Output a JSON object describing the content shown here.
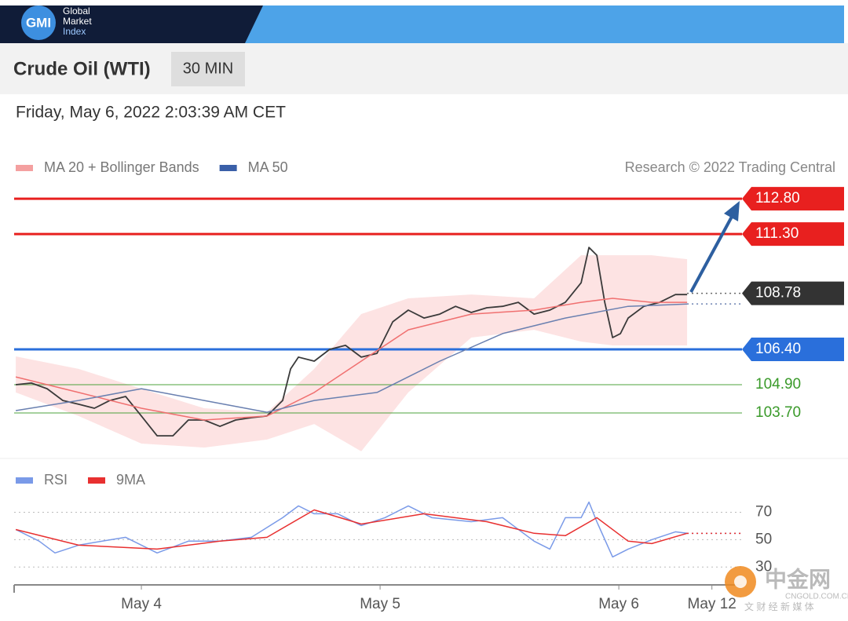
{
  "header": {
    "logo": "GMI",
    "brand": [
      "Global",
      "Market",
      "Index"
    ]
  },
  "title": "Crude Oil (WTI)",
  "timeframe": "30 MIN",
  "timestamp": "Friday, May 6, 2022 2:03:39 AM CET",
  "source": "Research © 2022 Trading Central",
  "watermark": {
    "name": "中金网",
    "site": "CNGOLD.COM.CN",
    "tagline": "文 财 经 新 媒 体"
  },
  "chart_data": [
    {
      "type": "line",
      "xlim": [
        3.467,
        6.516
      ],
      "ylim": [
        101.9,
        113.57
      ],
      "price": {
        "color": "#3a3a3a",
        "x": [
          3.474,
          3.539,
          3.605,
          3.671,
          3.737,
          3.803,
          3.868,
          3.934,
          4,
          4.066,
          4.132,
          4.197,
          4.263,
          4.329,
          4.395,
          4.461,
          4.526,
          4.592,
          4.625,
          4.658,
          4.724,
          4.789,
          4.855,
          4.921,
          4.987,
          5.053,
          5.118,
          5.184,
          5.25,
          5.316,
          5.382,
          5.447,
          5.513,
          5.579,
          5.645,
          5.711,
          5.776,
          5.842,
          5.875,
          5.908,
          5.941,
          5.974,
          6.007,
          6.039,
          6.105,
          6.171,
          6.237,
          6.286
        ],
        "values": [
          104.9,
          104.97,
          104.73,
          104.23,
          104.07,
          103.9,
          104.23,
          104.4,
          103.57,
          102.73,
          102.73,
          103.4,
          103.4,
          103.13,
          103.4,
          103.5,
          103.57,
          104.23,
          105.57,
          106.07,
          105.9,
          106.4,
          106.57,
          106.07,
          106.23,
          107.57,
          108.07,
          107.73,
          107.9,
          108.23,
          107.97,
          108.17,
          108.23,
          108.4,
          107.9,
          108.07,
          108.4,
          109.23,
          110.73,
          110.4,
          108.4,
          106.9,
          107.07,
          107.73,
          108.23,
          108.4,
          108.73,
          108.73
        ]
      },
      "series": [
        {
          "name": "MA 20 + Bollinger Bands",
          "color": "#f07070",
          "legend_color": "#f4a0a0",
          "band_color": "#fde3e3",
          "x": [
            3.474,
            3.737,
            4,
            4.263,
            4.526,
            4.724,
            4.921,
            5.118,
            5.382,
            5.645,
            5.842,
            5.974,
            6.138,
            6.286
          ],
          "values": [
            105.23,
            104.57,
            103.9,
            103.4,
            103.57,
            104.57,
            105.9,
            107.23,
            107.9,
            108.07,
            108.4,
            108.57,
            108.4,
            108.4
          ],
          "upper": [
            106.1,
            105.57,
            104.73,
            103.9,
            103.73,
            105.57,
            107.9,
            108.57,
            108.73,
            108.57,
            110.4,
            110.4,
            110.4,
            110.23
          ],
          "lower": [
            104.57,
            103.57,
            102.4,
            102.23,
            102.57,
            103.23,
            102.07,
            104.57,
            106.9,
            107.23,
            106.73,
            106.57,
            106.57,
            106.57
          ]
        },
        {
          "name": "MA 50",
          "color": "#6a80b0",
          "legend_color": "#3a5fa8",
          "x": [
            3.474,
            3.737,
            4,
            4.263,
            4.526,
            4.724,
            4.987,
            5.25,
            5.513,
            5.776,
            6.039,
            6.286
          ],
          "values": [
            103.8,
            104.23,
            104.73,
            104.23,
            103.73,
            104.23,
            104.57,
            105.9,
            107.07,
            107.73,
            108.23,
            108.33
          ]
        }
      ],
      "levels": [
        {
          "value": 112.8,
          "label": "112.80",
          "color": "#e8201f",
          "line": "solid",
          "box": true
        },
        {
          "value": 111.3,
          "label": "111.30",
          "color": "#e8201f",
          "line": "solid",
          "box": true
        },
        {
          "value": 108.78,
          "color": "#333333",
          "line": "dotted",
          "box": true
        },
        {
          "value": 106.4,
          "label": "106.40",
          "color": "#2a6fdb",
          "line": "solid",
          "box": true
        },
        {
          "value": 104.9,
          "label": "104.90",
          "color": "#3a9a2a",
          "line": "solid",
          "box": false
        },
        {
          "value": 103.7,
          "label": "103.70",
          "color": "#3a9a2a",
          "line": "solid",
          "box": false
        }
      ]
    },
    {
      "type": "line",
      "xlim": [
        3.467,
        6.516
      ],
      "ylim": [
        17,
        80
      ],
      "yticks": [
        30,
        50,
        70
      ],
      "grid": true,
      "xticks": [
        {
          "value": 4,
          "label": "May 4"
        },
        {
          "value": 5,
          "label": "May 5"
        },
        {
          "value": 6,
          "label": "May 6"
        },
        {
          "value": 6.39,
          "label": "May 12"
        }
      ],
      "series": [
        {
          "name": "RSI",
          "color": "#7a9ae8",
          "x": [
            3.474,
            3.572,
            3.638,
            3.737,
            3.836,
            3.934,
            4.066,
            4.197,
            4.329,
            4.461,
            4.592,
            4.658,
            4.724,
            4.822,
            4.921,
            5.02,
            5.118,
            5.217,
            5.382,
            5.513,
            5.645,
            5.711,
            5.776,
            5.842,
            5.875,
            5.908,
            5.974,
            6.039,
            6.138,
            6.237,
            6.286
          ],
          "values": [
            57.4,
            48.9,
            40.3,
            46,
            48.9,
            51.7,
            40.3,
            48.9,
            48.9,
            51.7,
            66,
            74.6,
            68.9,
            68.9,
            60.3,
            66,
            74.6,
            66,
            63.1,
            66,
            48.9,
            43.1,
            66,
            66,
            77.4,
            63.1,
            37.4,
            43.1,
            50,
            55.7,
            54.6
          ]
        },
        {
          "name": "9MA",
          "color": "#e83030",
          "x": [
            3.474,
            3.737,
            4.066,
            4.329,
            4.526,
            4.724,
            4.921,
            5.184,
            5.447,
            5.645,
            5.776,
            5.908,
            6.039,
            6.138,
            6.286
          ],
          "values": [
            57.4,
            46,
            43.1,
            48.9,
            51.7,
            71.7,
            61.4,
            68.9,
            63.1,
            54.6,
            52.9,
            66,
            48.9,
            47.1,
            54.6
          ]
        }
      ]
    }
  ]
}
